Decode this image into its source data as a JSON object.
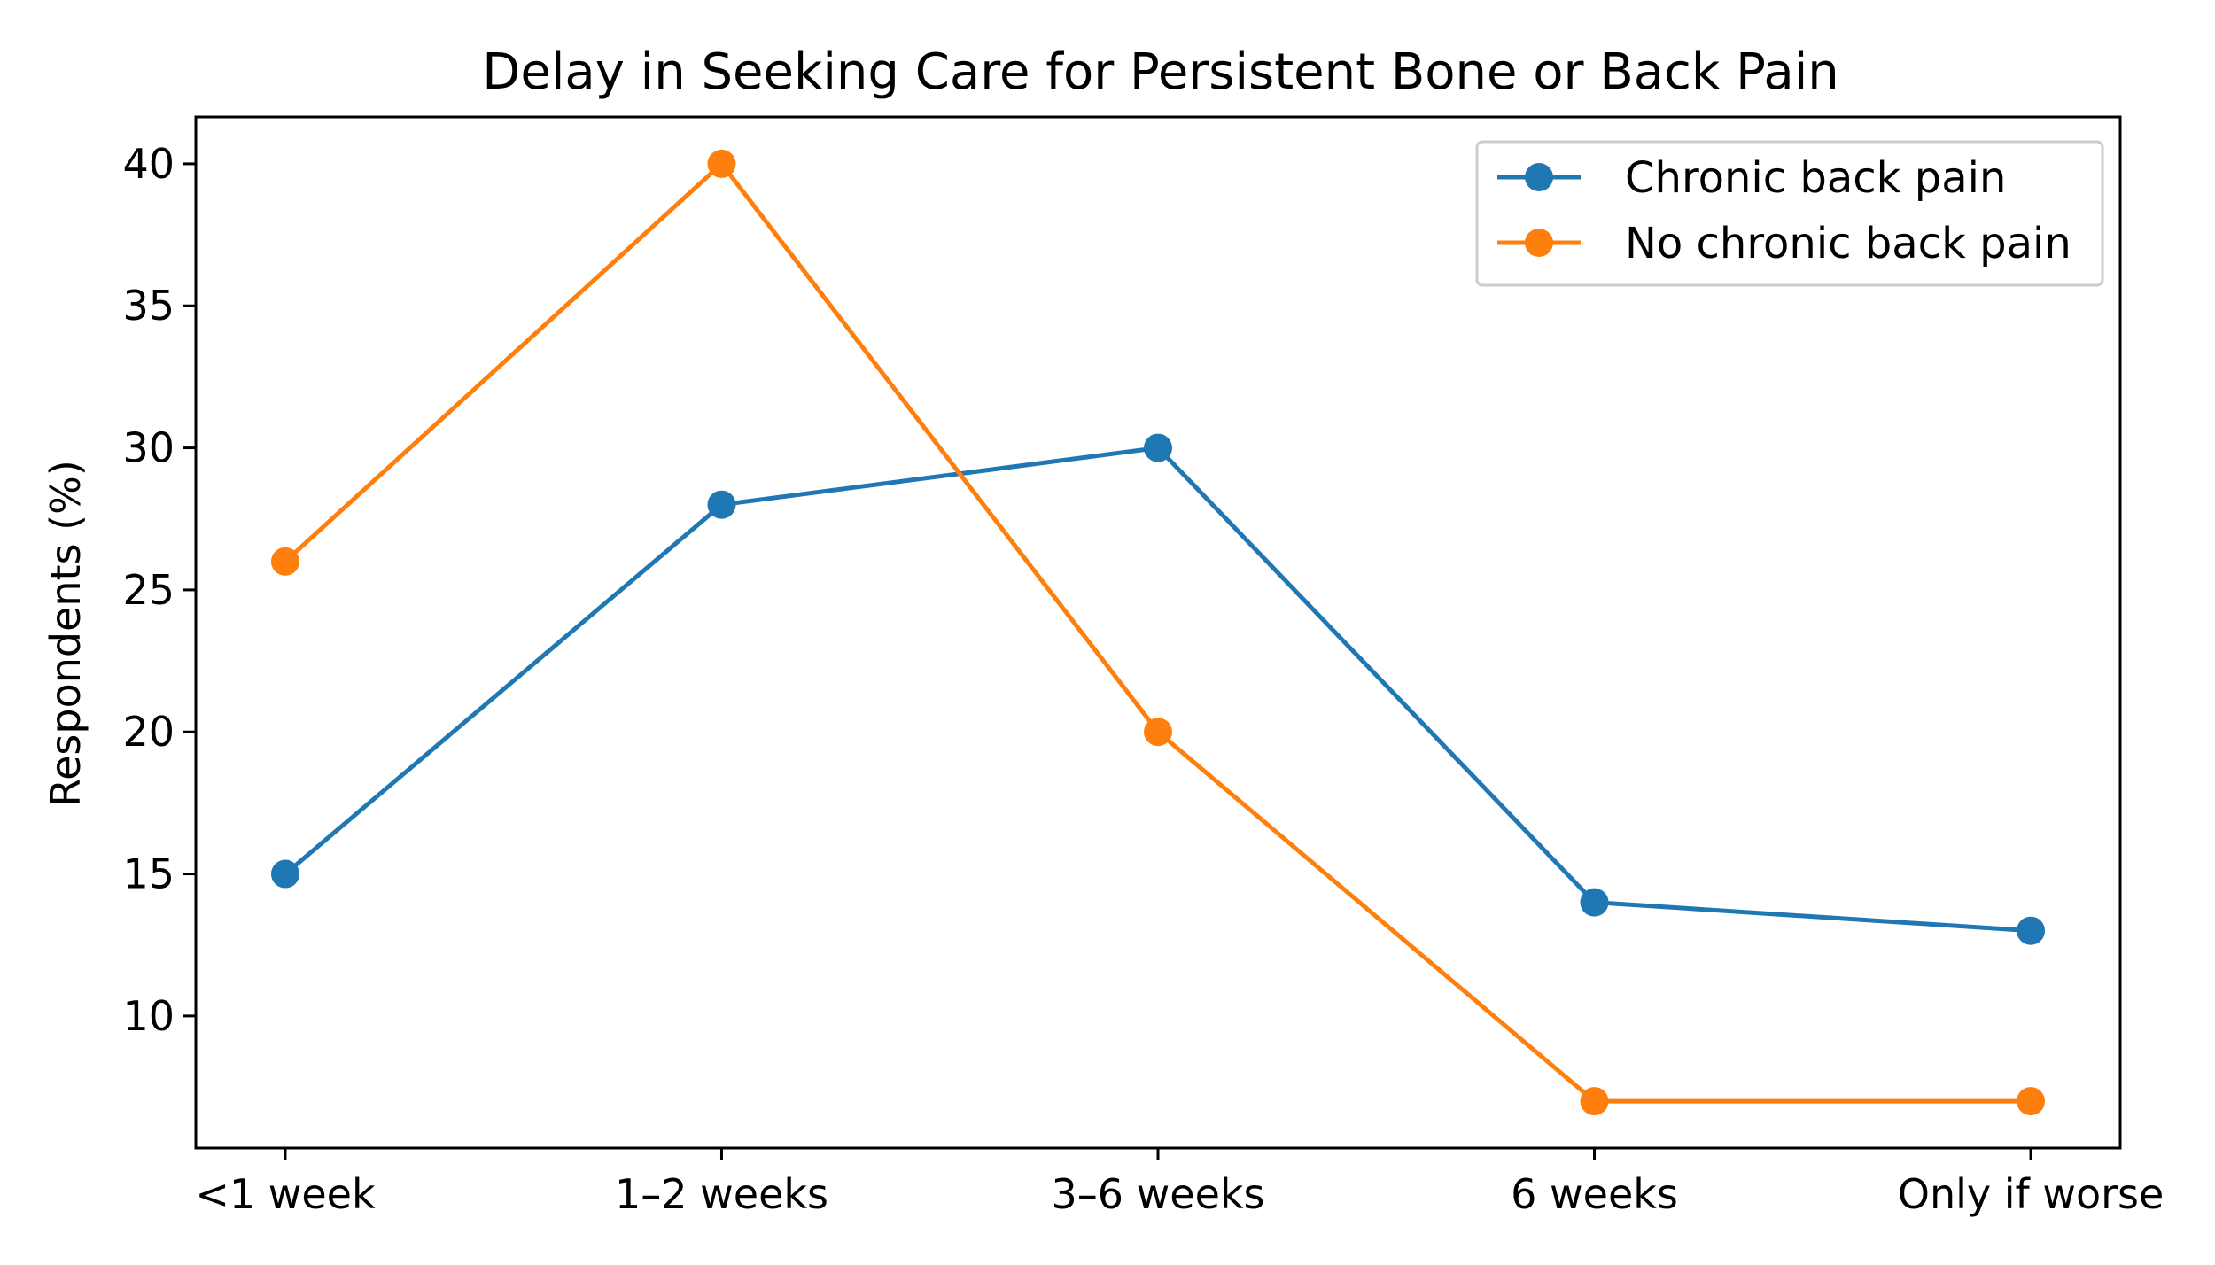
{
  "chart_data": {
    "type": "line",
    "title": "Delay in Seeking Care for Persistent Bone or Back Pain",
    "xlabel": "",
    "ylabel": "Respondents (%)",
    "categories": [
      "<1 week",
      "1–2 weeks",
      "3–6 weeks",
      "6 weeks",
      "Only if worse"
    ],
    "series": [
      {
        "name": "Chronic back pain",
        "values": [
          15,
          28,
          30,
          14,
          13
        ],
        "color": "#1f77b4"
      },
      {
        "name": "No chronic back pain",
        "values": [
          26,
          40,
          20,
          7,
          7
        ],
        "color": "#ff7f0e"
      }
    ],
    "ylim": [
      5.35,
      41.65
    ],
    "yticks": [
      10,
      15,
      20,
      25,
      30,
      35,
      40
    ],
    "grid": false,
    "legend_position": "top-right",
    "marker": "circle"
  }
}
